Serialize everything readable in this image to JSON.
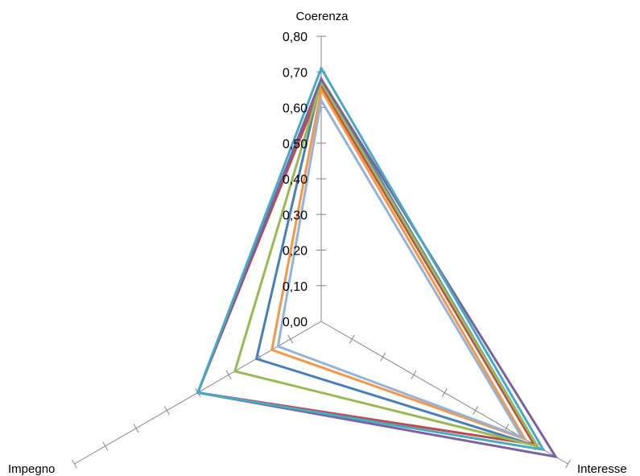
{
  "chart_data": {
    "type": "radar",
    "axes": [
      "Coerenza",
      "Interesse",
      "Impegno"
    ],
    "ticks": [
      "0,00",
      "0,10",
      "0,20",
      "0,30",
      "0,40",
      "0,50",
      "0,60",
      "0,70",
      "0,80"
    ],
    "rmax": 0.8,
    "grid": false,
    "legend": "none",
    "series": [
      {
        "color": "#4a7ebb",
        "values": [
          0.68,
          0.7,
          0.21
        ]
      },
      {
        "color": "#be4b48",
        "values": [
          0.66,
          0.69,
          0.4
        ]
      },
      {
        "color": "#98b954",
        "values": [
          0.67,
          0.7,
          0.28
        ]
      },
      {
        "color": "#7d60a0",
        "values": [
          0.68,
          0.76,
          0.4
        ]
      },
      {
        "color": "#46aac5",
        "values": [
          0.71,
          0.72,
          0.4
        ]
      },
      {
        "color": "#f79646",
        "values": [
          0.65,
          0.66,
          0.16
        ]
      },
      {
        "color": "#95b3d7",
        "values": [
          0.62,
          0.65,
          0.14
        ]
      }
    ]
  }
}
